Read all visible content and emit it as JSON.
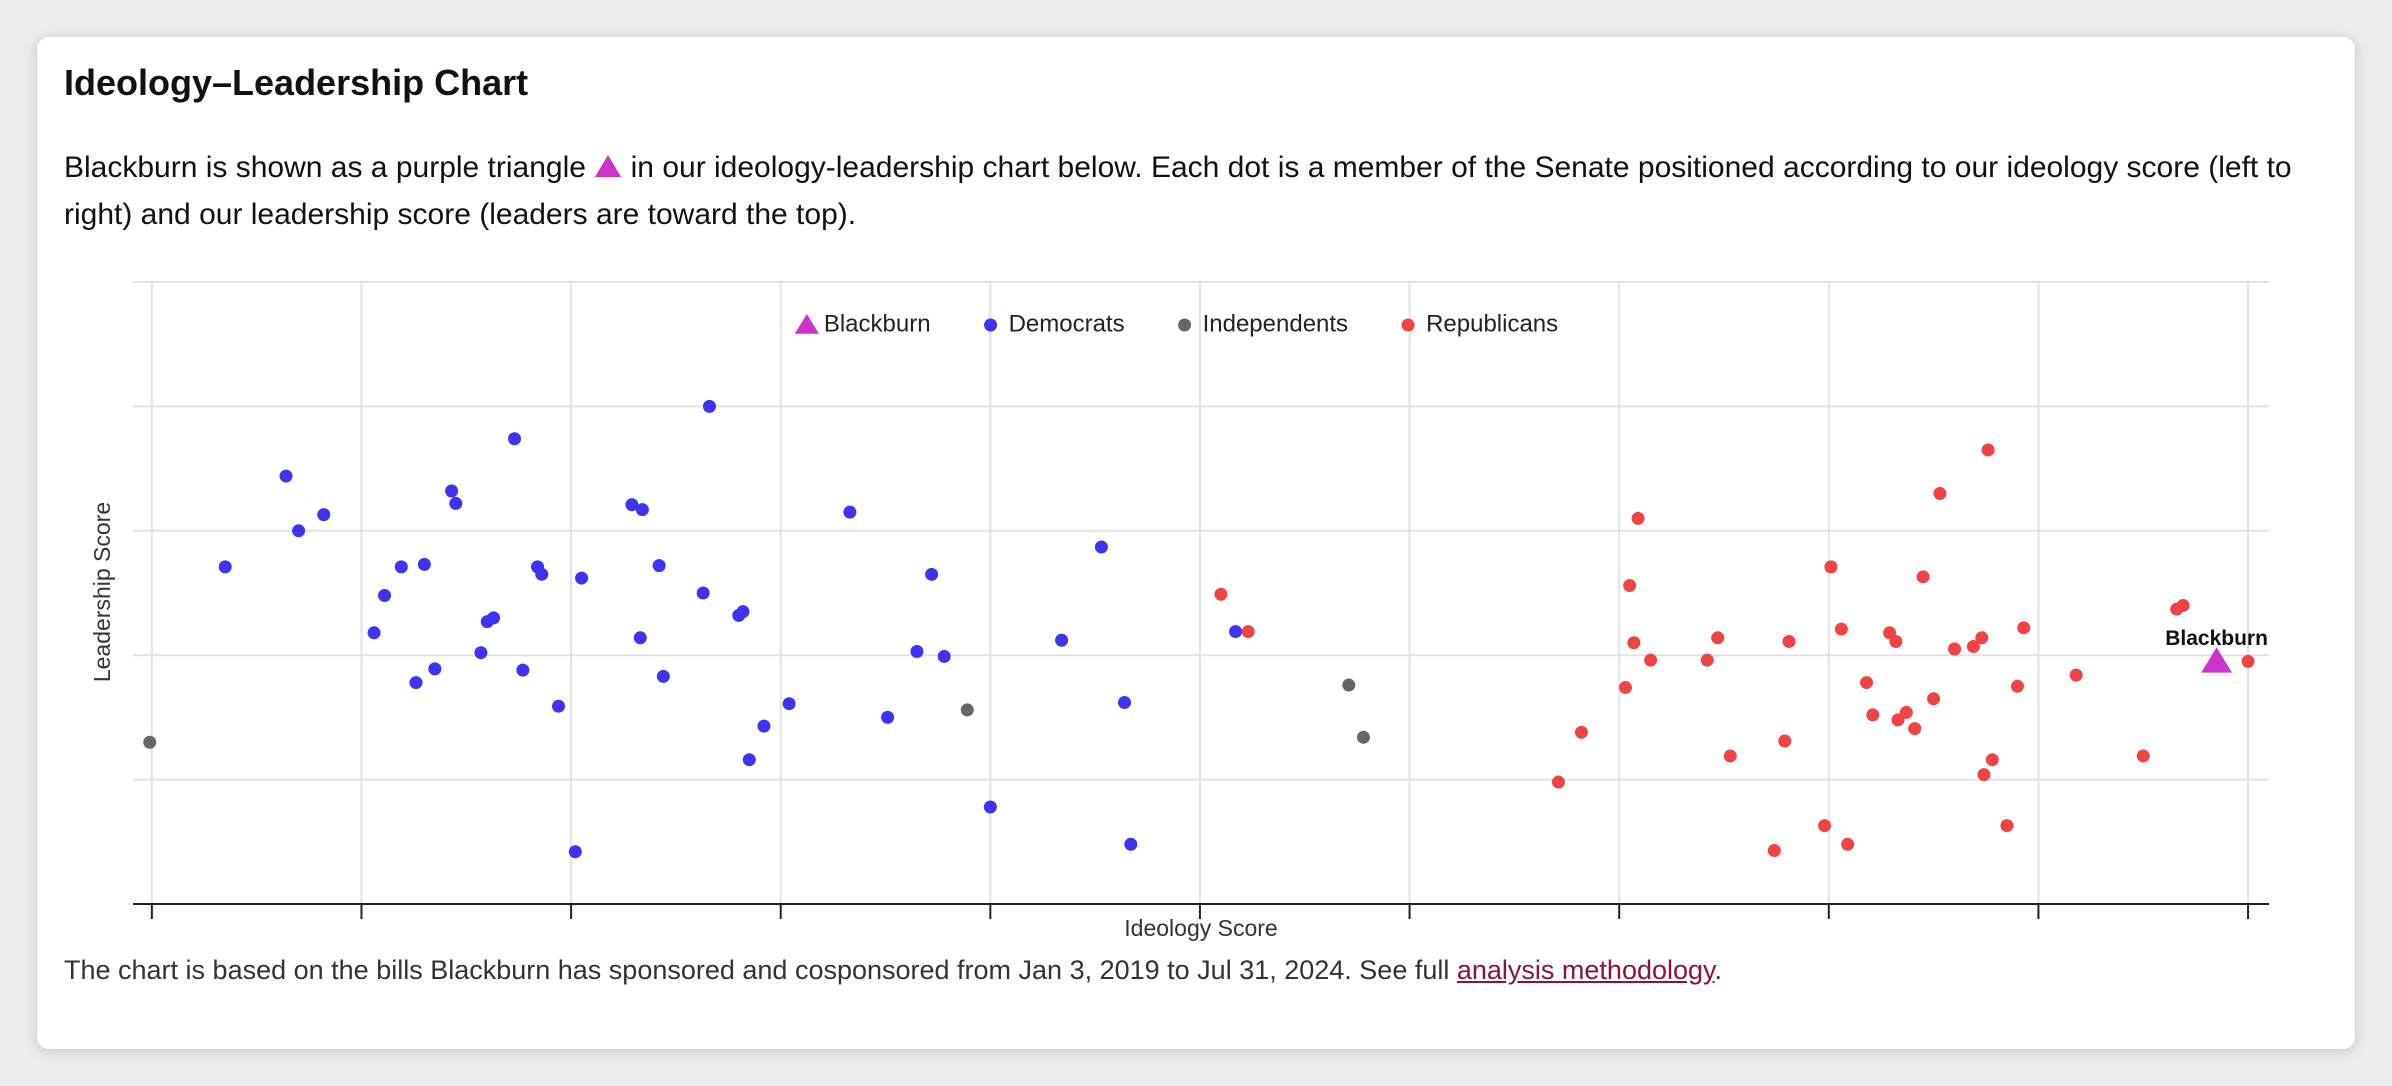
{
  "header": {
    "title": "Ideology–Leadership Chart"
  },
  "description": {
    "before": "Blackburn is shown as a purple triangle",
    "after": "in our ideology-leadership chart below. Each dot is a member of the Senate positioned according to our ideology score (left to right) and our leadership score (leaders are toward the top)."
  },
  "footer": {
    "text": "The chart is based on the bills Blackburn has sponsored and cosponsored from Jan 3, 2019 to Jul 31, 2024. See full",
    "link": "analysis methodology",
    "end": "."
  },
  "chart_data": {
    "type": "scatter",
    "xlabel": "Ideology Score",
    "ylabel": "Leadership Score",
    "xlim": [
      -0.09,
      10.1
    ],
    "ylim": [
      0,
      5
    ],
    "xticks": [
      0,
      1,
      2,
      3,
      4,
      5,
      6,
      7,
      8,
      9,
      10
    ],
    "yticks": [
      0,
      1,
      2,
      3,
      4,
      5
    ],
    "grid": true,
    "legend_position": "top",
    "series": [
      {
        "name": "Blackburn",
        "color": "#cc33cc",
        "marker": "triangle",
        "x": [
          9.85
        ],
        "values": [
          1.95
        ],
        "point_labels": [
          "Blackburn"
        ]
      },
      {
        "name": "Democrats",
        "color": "#3d33f0",
        "marker": "circle",
        "x": [
          0.35,
          0.64,
          0.7,
          0.82,
          1.06,
          1.11,
          1.19,
          1.26,
          1.3,
          1.35,
          1.43,
          1.45,
          1.57,
          1.6,
          1.63,
          1.73,
          1.77,
          1.84,
          1.86,
          1.94,
          2.02,
          2.05,
          2.29,
          2.34,
          2.33,
          2.42,
          2.44,
          2.63,
          2.66,
          2.8,
          2.82,
          2.85,
          2.92,
          3.04,
          3.33,
          3.51,
          3.65,
          3.72,
          3.78,
          4.0,
          4.34,
          4.53,
          4.64,
          4.67,
          5.17
        ],
        "values": [
          2.71,
          3.44,
          3.0,
          3.13,
          2.18,
          2.48,
          2.71,
          1.78,
          2.73,
          1.89,
          3.32,
          3.22,
          2.02,
          2.27,
          2.3,
          3.74,
          1.88,
          2.71,
          2.65,
          1.59,
          0.42,
          2.62,
          3.21,
          3.17,
          2.14,
          2.72,
          1.83,
          2.5,
          4.0,
          2.32,
          2.35,
          1.16,
          1.43,
          1.61,
          3.15,
          1.5,
          2.03,
          2.65,
          1.99,
          0.78,
          2.12,
          2.87,
          1.62,
          0.48,
          2.19
        ]
      },
      {
        "name": "Independents",
        "color": "#666666",
        "marker": "circle",
        "x": [
          -0.01,
          3.89,
          5.71,
          5.78
        ],
        "values": [
          1.3,
          1.56,
          1.76,
          1.34
        ]
      },
      {
        "name": "Republicans",
        "color": "#f04444",
        "marker": "circle",
        "x": [
          5.1,
          5.23,
          6.71,
          6.82,
          7.03,
          7.05,
          7.07,
          7.09,
          7.15,
          7.42,
          7.47,
          7.53,
          7.74,
          7.79,
          7.81,
          7.98,
          8.01,
          8.06,
          8.09,
          8.18,
          8.21,
          8.29,
          8.32,
          8.33,
          8.37,
          8.41,
          8.45,
          8.5,
          8.53,
          8.6,
          8.69,
          8.73,
          8.74,
          8.76,
          8.78,
          8.85,
          8.9,
          8.93,
          9.18,
          9.5,
          9.66,
          9.69,
          10.0
        ],
        "values": [
          2.49,
          2.19,
          0.98,
          1.38,
          1.74,
          2.56,
          2.1,
          3.1,
          1.96,
          1.96,
          2.14,
          1.19,
          0.43,
          1.31,
          2.11,
          0.63,
          2.71,
          2.21,
          0.48,
          1.78,
          1.52,
          2.18,
          2.11,
          1.48,
          1.54,
          1.41,
          2.63,
          1.65,
          3.3,
          2.05,
          2.07,
          2.14,
          1.04,
          3.65,
          1.16,
          0.63,
          1.75,
          2.22,
          1.84,
          1.19,
          2.37,
          2.4,
          1.95
        ]
      }
    ]
  }
}
